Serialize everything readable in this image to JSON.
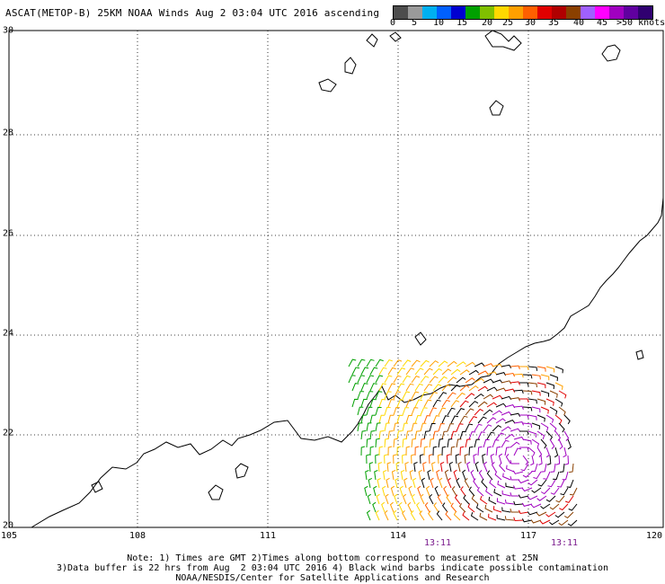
{
  "title": "ASCAT(METOP-B) 25KM NOAA Winds Aug  2 03:04 UTC 2016 ascending",
  "colorbar": {
    "colors": [
      "#4d4d4d",
      "#9a9a9a",
      "#00b0f0",
      "#0060ff",
      "#0000d0",
      "#00a000",
      "#80c000",
      "#ffd800",
      "#ffa000",
      "#ff6000",
      "#e00000",
      "#b00000",
      "#8a4000",
      "#a060ff",
      "#ff00ff",
      "#a000c0",
      "#6000a0",
      "#300070"
    ],
    "labels": [
      "0",
      "5",
      "10",
      "15",
      "20",
      "25",
      "30",
      "35",
      "40",
      "45",
      ">50 knots"
    ]
  },
  "x_ticks": [
    "105",
    "108",
    "111",
    "114",
    "117",
    "120"
  ],
  "y_ticks": [
    "30",
    "28",
    "26",
    "24",
    "22",
    "20"
  ],
  "times": [
    "13:11",
    "13:11"
  ],
  "footer": {
    "line1": "Note: 1) Times are GMT 2)Times along bottom correspond to measurement at 25N",
    "line2": "3)Data buffer is 22 hrs from Aug  2 03:04 UTC 2016 4) Black wind barbs indicate possible contamination",
    "line3": "NOAA/NESDIS/Center for Satellite Applications and Research"
  }
}
